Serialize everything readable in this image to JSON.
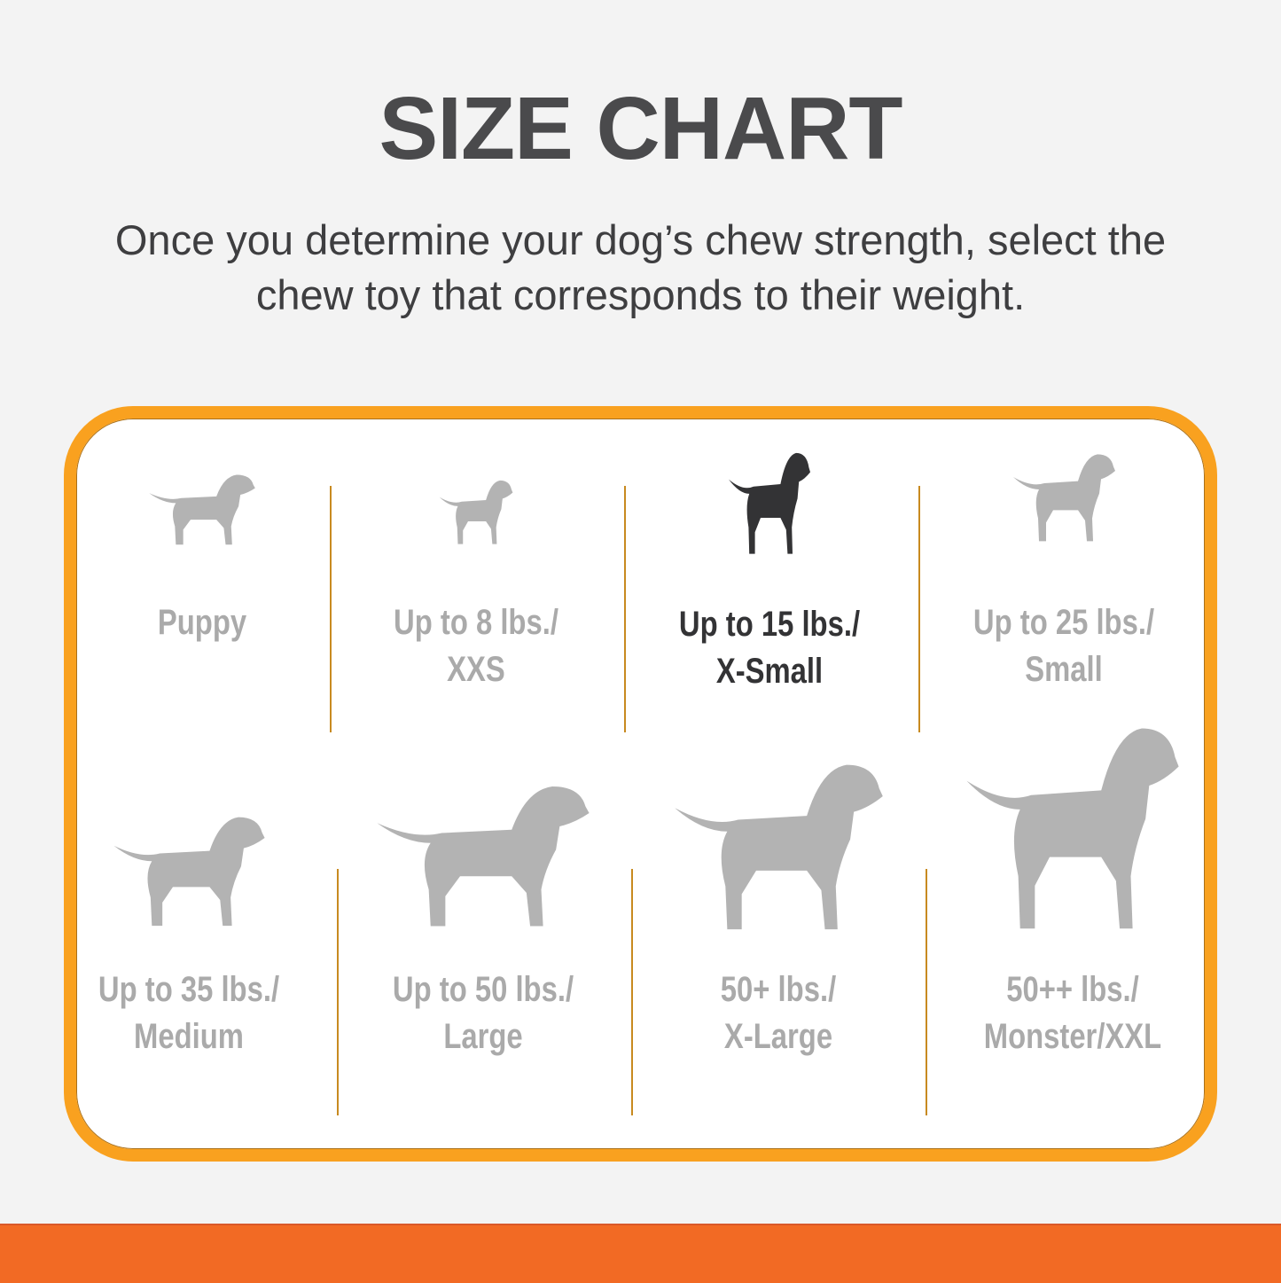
{
  "title": "SIZE CHART",
  "subtitle_line1": "Once you determine your dog’s chew strength, select the",
  "subtitle_line2": "chew toy that corresponds to their weight.",
  "colors": {
    "frame": "#f9a11f",
    "bottom_bar": "#f26a24",
    "inactive": "#aaaaaa",
    "active": "#333335"
  },
  "sizes": [
    {
      "line1": "Puppy",
      "line2": "",
      "icon": "puppy-icon",
      "active": false
    },
    {
      "line1": "Up to 8 lbs./",
      "line2": "XXS",
      "icon": "chihuahua-icon",
      "active": false
    },
    {
      "line1": "Up to 15 lbs./",
      "line2": "X-Small",
      "icon": "toy-terrier-icon",
      "active": true
    },
    {
      "line1": "Up to 25 lbs./",
      "line2": "Small",
      "icon": "yorkie-icon",
      "active": false
    },
    {
      "line1": "Up to 35 lbs./",
      "line2": "Medium",
      "icon": "beagle-icon",
      "active": false
    },
    {
      "line1": "Up to 50 lbs./",
      "line2": "Large",
      "icon": "labrador-icon",
      "active": false
    },
    {
      "line1": "50+ lbs./",
      "line2": "X-Large",
      "icon": "shepherd-icon",
      "active": false
    },
    {
      "line1": "50++ lbs./",
      "line2": "Monster/XXL",
      "icon": "great-dane-icon",
      "active": false
    }
  ]
}
